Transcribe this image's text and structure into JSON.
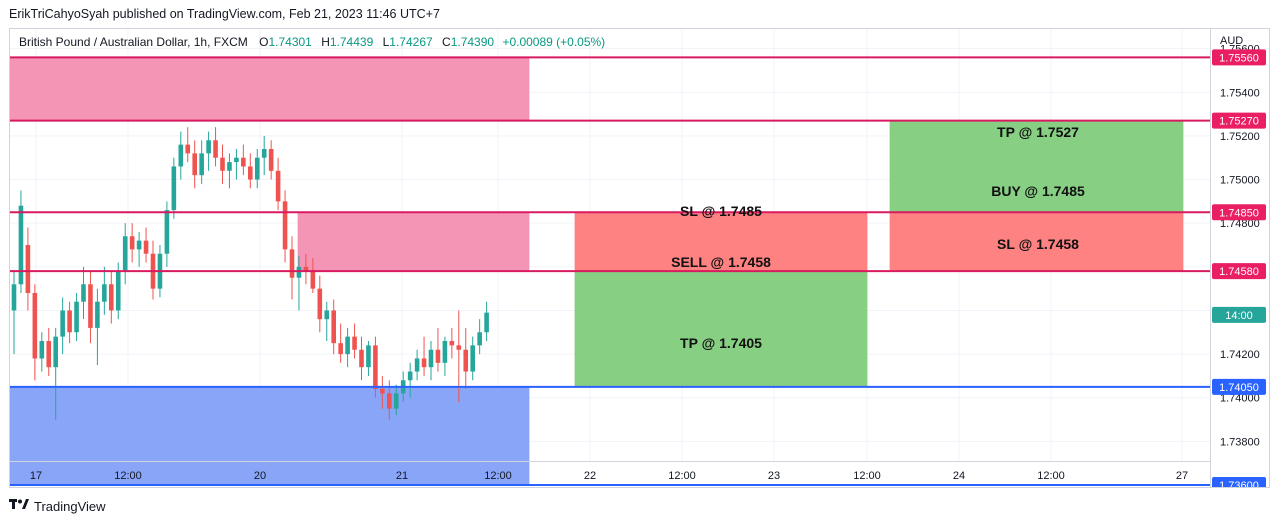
{
  "header": {
    "published": "ErikTriCahyoSyah published on TradingView.com, Feb 21, 2023 11:46 UTC+7"
  },
  "legend": {
    "symbol": "British Pound / Australian Dollar, 1h, FXCM",
    "o_label": "O",
    "o": "1.74301",
    "h_label": "H",
    "h": "1.74439",
    "l_label": "L",
    "l": "1.74267",
    "c_label": "C",
    "c": "1.74390",
    "change": "+0.00089 (+0.05%)"
  },
  "axis": {
    "currency": "AUD",
    "y_ticks": [
      "1.75600",
      "1.75400",
      "1.75200",
      "1.75000",
      "1.74800",
      "1.74600",
      "1.74400",
      "1.74200",
      "1.74000",
      "1.73800"
    ],
    "x_ticks": [
      "17",
      "12:00",
      "20",
      "21",
      "12:00",
      "22",
      "12:00",
      "23",
      "12:00",
      "24",
      "12:00",
      "27"
    ]
  },
  "price_labels": [
    {
      "text": "1.75560",
      "color": "#e91e63"
    },
    {
      "text": "1.75270",
      "color": "#e91e63"
    },
    {
      "text": "1.74850",
      "color": "#e91e63"
    },
    {
      "text": "1.74580",
      "color": "#e91e63"
    },
    {
      "text": "14:00",
      "color": "#26a69a"
    },
    {
      "text": "1.74050",
      "color": "#2962ff"
    },
    {
      "text": "1.73600",
      "color": "#2962ff"
    }
  ],
  "zones": {
    "sell_sl": "SL @ 1.7485",
    "sell_entry": "SELL @ 1.7458",
    "sell_tp": "TP @ 1.7405",
    "buy_tp": "TP @ 1.7527",
    "buy_entry": "BUY @ 1.7485",
    "buy_sl": "SL @ 1.7458"
  },
  "footer": {
    "brand": "TradingView"
  },
  "colors": {
    "up": "#26a69a",
    "down": "#ef5350",
    "pink_zone": "#f48fb1",
    "blue_zone": "#82a0f8",
    "tp_zone": "#81cc7c",
    "sl_zone": "#ff7b7b",
    "pink_line": "#d81b60",
    "blue_line": "#2962ff"
  },
  "chart_data": {
    "type": "candlestick",
    "title": "British Pound / Australian Dollar, 1h, FXCM",
    "ylim": [
      1.7371,
      1.7569
    ],
    "horizontal_levels": [
      1.7556,
      1.7527,
      1.7485,
      1.7458,
      1.7405,
      1.736
    ],
    "candles": [
      [
        1.744,
        1.7458,
        1.742,
        1.7452
      ],
      [
        1.7452,
        1.7495,
        1.7448,
        1.7488
      ],
      [
        1.747,
        1.7478,
        1.744,
        1.7448
      ],
      [
        1.7448,
        1.7452,
        1.7408,
        1.7418
      ],
      [
        1.7418,
        1.743,
        1.7412,
        1.7426
      ],
      [
        1.7426,
        1.7432,
        1.741,
        1.7414
      ],
      [
        1.7414,
        1.7432,
        1.739,
        1.7428
      ],
      [
        1.7428,
        1.7446,
        1.742,
        1.744
      ],
      [
        1.744,
        1.7444,
        1.7425,
        1.743
      ],
      [
        1.743,
        1.7448,
        1.7426,
        1.7444
      ],
      [
        1.7444,
        1.746,
        1.7436,
        1.7452
      ],
      [
        1.7452,
        1.7458,
        1.7425,
        1.7432
      ],
      [
        1.7432,
        1.745,
        1.7415,
        1.7444
      ],
      [
        1.7444,
        1.746,
        1.7438,
        1.7452
      ],
      [
        1.7452,
        1.7458,
        1.7434,
        1.744
      ],
      [
        1.744,
        1.7462,
        1.7436,
        1.7458
      ],
      [
        1.7458,
        1.748,
        1.7452,
        1.7474
      ],
      [
        1.7474,
        1.748,
        1.7462,
        1.7468
      ],
      [
        1.7468,
        1.7476,
        1.746,
        1.7472
      ],
      [
        1.7472,
        1.7478,
        1.7462,
        1.7466
      ],
      [
        1.7466,
        1.7472,
        1.7445,
        1.745
      ],
      [
        1.745,
        1.747,
        1.7446,
        1.7466
      ],
      [
        1.7466,
        1.749,
        1.746,
        1.7486
      ],
      [
        1.7486,
        1.751,
        1.7482,
        1.7506
      ],
      [
        1.7506,
        1.7522,
        1.75,
        1.7516
      ],
      [
        1.7516,
        1.7524,
        1.7508,
        1.7512
      ],
      [
        1.7512,
        1.7518,
        1.7496,
        1.7502
      ],
      [
        1.7502,
        1.7518,
        1.7498,
        1.7512
      ],
      [
        1.7512,
        1.7522,
        1.7504,
        1.7518
      ],
      [
        1.7518,
        1.7524,
        1.7506,
        1.751
      ],
      [
        1.751,
        1.7516,
        1.7498,
        1.7504
      ],
      [
        1.7504,
        1.7512,
        1.7496,
        1.7508
      ],
      [
        1.7508,
        1.7514,
        1.75,
        1.751
      ],
      [
        1.751,
        1.7516,
        1.7502,
        1.7506
      ],
      [
        1.7506,
        1.7512,
        1.7496,
        1.75
      ],
      [
        1.75,
        1.7514,
        1.7496,
        1.751
      ],
      [
        1.751,
        1.752,
        1.7502,
        1.7514
      ],
      [
        1.7514,
        1.7518,
        1.75,
        1.7504
      ],
      [
        1.7504,
        1.751,
        1.7486,
        1.749
      ],
      [
        1.749,
        1.7495,
        1.7462,
        1.7468
      ],
      [
        1.7468,
        1.7474,
        1.7445,
        1.7455
      ],
      [
        1.7455,
        1.7465,
        1.744,
        1.746
      ],
      [
        1.746,
        1.7466,
        1.7452,
        1.7458
      ],
      [
        1.7458,
        1.7464,
        1.7448,
        1.745
      ],
      [
        1.745,
        1.7456,
        1.743,
        1.7436
      ],
      [
        1.7436,
        1.7444,
        1.7426,
        1.744
      ],
      [
        1.744,
        1.7445,
        1.742,
        1.7425
      ],
      [
        1.7425,
        1.7434,
        1.7416,
        1.742
      ],
      [
        1.742,
        1.7432,
        1.7414,
        1.7428
      ],
      [
        1.7428,
        1.7434,
        1.7418,
        1.7422
      ],
      [
        1.7422,
        1.7428,
        1.7408,
        1.7414
      ],
      [
        1.7414,
        1.7426,
        1.741,
        1.7424
      ],
      [
        1.7424,
        1.7428,
        1.74,
        1.7404
      ],
      [
        1.7404,
        1.741,
        1.7395,
        1.7402
      ],
      [
        1.7402,
        1.7408,
        1.739,
        1.7395
      ],
      [
        1.7395,
        1.7406,
        1.7392,
        1.7402
      ],
      [
        1.7402,
        1.7412,
        1.7398,
        1.7408
      ],
      [
        1.7408,
        1.7416,
        1.74,
        1.7412
      ],
      [
        1.7412,
        1.7422,
        1.7408,
        1.7418
      ],
      [
        1.7418,
        1.7428,
        1.741,
        1.7414
      ],
      [
        1.7414,
        1.7426,
        1.7408,
        1.7422
      ],
      [
        1.7422,
        1.7432,
        1.7412,
        1.7416
      ],
      [
        1.7416,
        1.7428,
        1.741,
        1.7426
      ],
      [
        1.7426,
        1.7432,
        1.7418,
        1.7424
      ],
      [
        1.7424,
        1.744,
        1.7398,
        1.7422
      ],
      [
        1.7422,
        1.7432,
        1.7404,
        1.7412
      ],
      [
        1.7412,
        1.7428,
        1.7408,
        1.7424
      ],
      [
        1.7424,
        1.7436,
        1.742,
        1.743
      ],
      [
        1.743,
        1.7444,
        1.7426,
        1.7439
      ]
    ]
  }
}
